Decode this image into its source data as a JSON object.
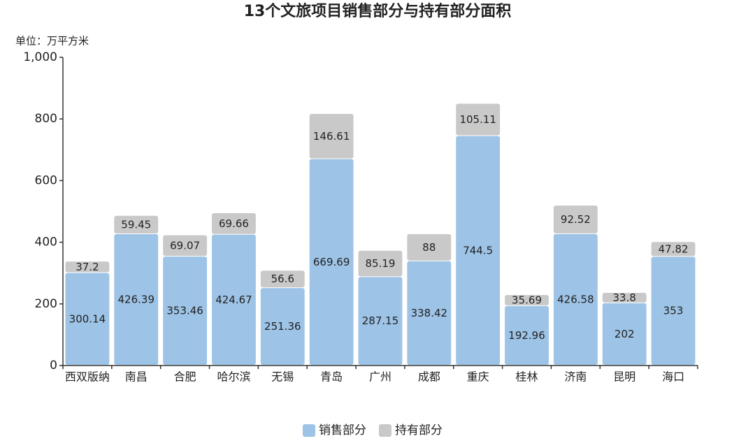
{
  "chart_data": {
    "type": "stacked_bar",
    "title": "13个文旅项目销售部分与持有部分面积",
    "y_unit": "单位：万平方米",
    "categories": [
      "西双版纳",
      "南昌",
      "合肥",
      "哈尔滨",
      "无锡",
      "青岛",
      "广州",
      "成都",
      "重庆",
      "桂林",
      "济南",
      "昆明",
      "海口"
    ],
    "series": [
      {
        "name": "销售部分",
        "color": "#9dc3e6",
        "values": [
          300.14,
          426.39,
          353.46,
          424.67,
          251.36,
          669.69,
          287.15,
          338.42,
          744.5,
          192.96,
          426.58,
          202,
          353
        ]
      },
      {
        "name": "持有部分",
        "color": "#c9c9c9",
        "values": [
          37.2,
          59.45,
          69.07,
          69.66,
          56.6,
          146.61,
          85.19,
          88,
          105.11,
          35.69,
          92.52,
          33.8,
          47.82
        ]
      }
    ],
    "ylim": [
      0,
      1000
    ],
    "yticks": [
      0,
      200,
      400,
      600,
      800,
      {
        "value": 1000,
        "label": "1,000"
      }
    ],
    "grid": false,
    "legend": "bottom"
  }
}
